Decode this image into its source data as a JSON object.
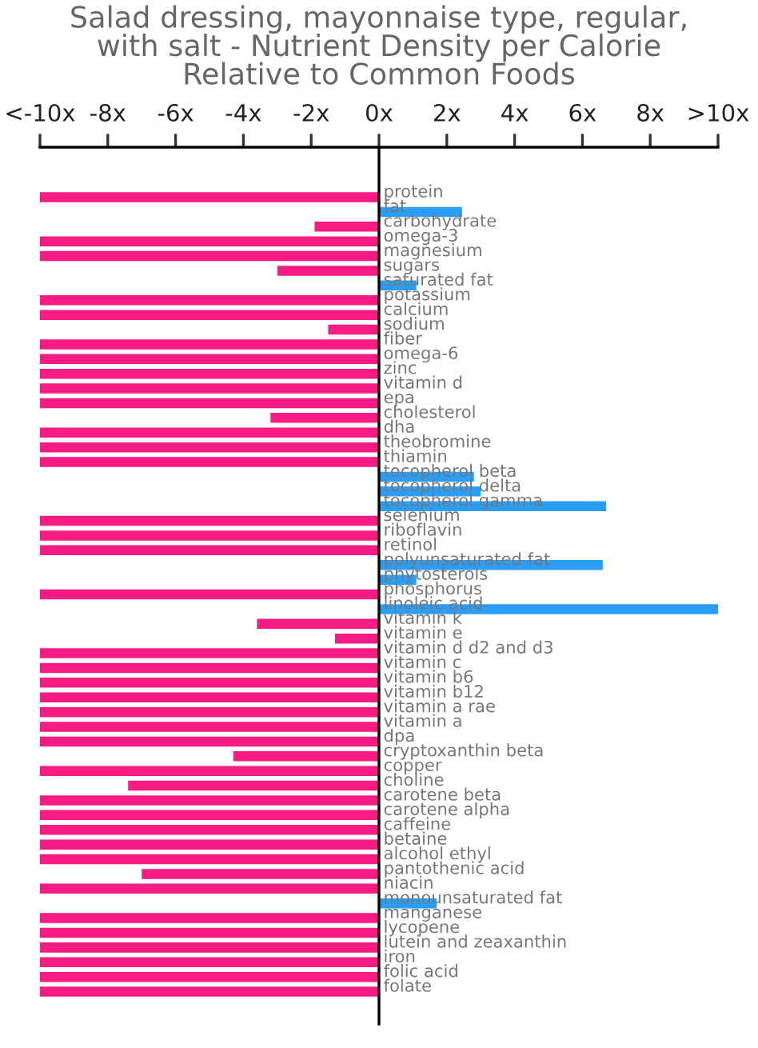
{
  "chart_data": {
    "type": "bar",
    "orientation": "horizontal",
    "title": "Salad dressing, mayonnaise type, regular,\nwith salt - Nutrient Density per Calorie\nRelative to Common Foods",
    "categories": [
      "protein",
      "fat",
      "carbohydrate",
      "omega-3",
      "magnesium",
      "sugars",
      "saturated fat",
      "potassium",
      "calcium",
      "sodium",
      "fiber",
      "omega-6",
      "zinc",
      "vitamin d",
      "epa",
      "cholesterol",
      "dha",
      "theobromine",
      "thiamin",
      "tocopherol beta",
      "tocopherol delta",
      "tocopherol gamma",
      "selenium",
      "riboflavin",
      "retinol",
      "polyunsaturated fat",
      "phytosterols",
      "phosphorus",
      "linoleic acid",
      "vitamin k",
      "vitamin e",
      "vitamin d d2 and d3",
      "vitamin c",
      "vitamin b6",
      "vitamin b12",
      "vitamin a rae",
      "vitamin a",
      "dpa",
      "cryptoxanthin beta",
      "copper",
      "choline",
      "carotene beta",
      "carotene alpha",
      "caffeine",
      "betaine",
      "alcohol ethyl",
      "pantothenic acid",
      "niacin",
      "monounsaturated fat",
      "manganese",
      "lycopene",
      "lutein and zeaxanthin",
      "iron",
      "folic acid",
      "folate"
    ],
    "values": [
      -10,
      2.45,
      -1.9,
      -10,
      -10,
      -3.0,
      1.1,
      -10,
      -10,
      -1.5,
      -10,
      -10,
      -10,
      -10,
      -10,
      -3.2,
      -10,
      -10,
      -10,
      2.8,
      3.0,
      6.7,
      -10,
      -10,
      -10,
      6.6,
      1.1,
      -10,
      10,
      -3.6,
      -1.3,
      -10,
      -10,
      -10,
      -10,
      -10,
      -10,
      -10,
      -4.3,
      -10,
      -7.4,
      -10,
      -10,
      -10,
      -10,
      -10,
      -7.0,
      -10,
      1.7,
      -10,
      -10,
      -10,
      -10,
      -10,
      -10
    ],
    "colors": [
      "#f81b84",
      "#2a9df4",
      "#f81b84",
      "#f81b84",
      "#f81b84",
      "#f81b84",
      "#2a9df4",
      "#f81b84",
      "#f81b84",
      "#f81b84",
      "#f81b84",
      "#f81b84",
      "#f81b84",
      "#f81b84",
      "#f81b84",
      "#f81b84",
      "#f81b84",
      "#f81b84",
      "#f81b84",
      "#2a9df4",
      "#2a9df4",
      "#2a9df4",
      "#f81b84",
      "#f81b84",
      "#f81b84",
      "#2a9df4",
      "#2a9df4",
      "#f81b84",
      "#2a9df4",
      "#f81b84",
      "#f81b84",
      "#f81b84",
      "#f81b84",
      "#f81b84",
      "#f81b84",
      "#f81b84",
      "#f81b84",
      "#f81b84",
      "#f81b84",
      "#f81b84",
      "#f81b84",
      "#f81b84",
      "#f81b84",
      "#f81b84",
      "#f81b84",
      "#f81b84",
      "#f81b84",
      "#f81b84",
      "#2a9df4",
      "#f81b84",
      "#f81b84",
      "#f81b84",
      "#f81b84",
      "#f81b84",
      "#f81b84"
    ],
    "xlim": [
      -10,
      10
    ],
    "xticks": [
      {
        "value": -10,
        "label": "<-10x"
      },
      {
        "value": -8,
        "label": "-8x"
      },
      {
        "value": -6,
        "label": "-6x"
      },
      {
        "value": -4,
        "label": "-4x"
      },
      {
        "value": -2,
        "label": "-2x"
      },
      {
        "value": 0,
        "label": "0x"
      },
      {
        "value": 2,
        "label": "2x"
      },
      {
        "value": 4,
        "label": "4x"
      },
      {
        "value": 6,
        "label": "6x"
      },
      {
        "value": 8,
        "label": "8x"
      },
      {
        "value": 10,
        "label": ">10x"
      }
    ],
    "grid": false,
    "legend": false
  }
}
